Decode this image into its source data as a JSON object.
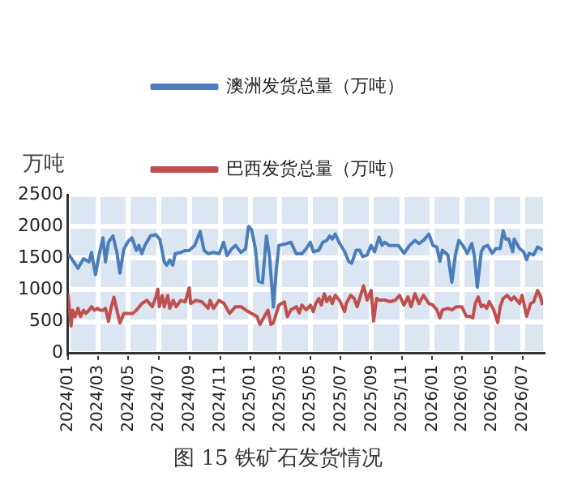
{
  "chart_data": {
    "type": "line",
    "title": "图 15 铁矿石发货情况",
    "ylabel": "万吨",
    "legend": "top",
    "grid": true,
    "marker": "none",
    "line_style": "solid",
    "xlim": [
      "2024-01-01",
      "2026-08-11"
    ],
    "xticks": [
      {
        "value": "2024-01",
        "label": "2024/01"
      },
      {
        "value": "2024-03",
        "label": "2024/03"
      },
      {
        "value": "2024-05",
        "label": "2024/05"
      },
      {
        "value": "2024-07",
        "label": "2024/07"
      },
      {
        "value": "2024-09",
        "label": "2024/09"
      },
      {
        "value": "2024-11",
        "label": "2024/11"
      },
      {
        "value": "2025-01",
        "label": "2025/01"
      },
      {
        "value": "2025-03",
        "label": "2025/03"
      },
      {
        "value": "2025-05",
        "label": "2025/05"
      },
      {
        "value": "2025-07",
        "label": "2025/07"
      },
      {
        "value": "2025-09",
        "label": "2025/09"
      },
      {
        "value": "2025-11",
        "label": "2025/11"
      },
      {
        "value": "2026-01",
        "label": "2026/01"
      },
      {
        "value": "2026-03",
        "label": "2026/03"
      },
      {
        "value": "2026-05",
        "label": "2026/05"
      },
      {
        "value": "2026-07",
        "label": "2026/07"
      }
    ],
    "ylim": [
      0,
      2500
    ],
    "yticks": [
      0,
      500,
      1000,
      1500,
      2000,
      2500
    ],
    "series": [
      {
        "name": "澳洲发货总量（万吨）",
        "color": "#4a7ebb",
        "x": [
          "2024-01-01",
          "2024-01-10",
          "2024-01-21",
          "2024-02-01",
          "2024-02-12",
          "2024-02-17",
          "2024-02-25",
          "2024-03-03",
          "2024-03-11",
          "2024-03-16",
          "2024-03-22",
          "2024-03-31",
          "2024-04-08",
          "2024-04-14",
          "2024-04-22",
          "2024-05-01",
          "2024-05-08",
          "2024-05-17",
          "2024-05-22",
          "2024-05-28",
          "2024-06-03",
          "2024-06-14",
          "2024-06-25",
          "2024-07-03",
          "2024-07-12",
          "2024-07-17",
          "2024-07-23",
          "2024-07-29",
          "2024-08-03",
          "2024-08-14",
          "2024-08-23",
          "2024-08-31",
          "2024-09-11",
          "2024-09-22",
          "2024-09-30",
          "2024-10-08",
          "2024-10-19",
          "2024-10-30",
          "2024-11-08",
          "2024-11-15",
          "2024-11-24",
          "2024-12-02",
          "2024-12-13",
          "2024-12-22",
          "2024-12-28",
          "2025-01-03",
          "2025-01-11",
          "2025-01-17",
          "2025-01-25",
          "2025-02-02",
          "2025-02-08",
          "2025-02-16",
          "2025-02-22",
          "2025-02-27",
          "2025-03-10",
          "2025-03-23",
          "2025-03-29",
          "2025-04-03",
          "2025-04-14",
          "2025-04-23",
          "2025-05-01",
          "2025-05-07",
          "2025-05-18",
          "2025-05-26",
          "2025-06-03",
          "2025-06-09",
          "2025-06-14",
          "2025-06-20",
          "2025-06-29",
          "2025-07-09",
          "2025-07-17",
          "2025-07-23",
          "2025-08-01",
          "2025-08-08",
          "2025-08-14",
          "2025-08-23",
          "2025-08-31",
          "2025-09-07",
          "2025-09-16",
          "2025-09-22",
          "2025-09-27",
          "2025-10-06",
          "2025-10-14",
          "2025-10-25",
          "2025-11-05",
          "2025-11-16",
          "2025-11-27",
          "2025-12-05",
          "2025-12-14",
          "2025-12-25",
          "2026-01-02",
          "2026-01-10",
          "2026-01-16",
          "2026-01-21",
          "2026-02-01",
          "2026-02-09",
          "2026-02-16",
          "2026-02-23",
          "2026-03-03",
          "2026-03-12",
          "2026-03-21",
          "2026-03-26",
          "2026-04-01",
          "2026-04-09",
          "2026-04-14",
          "2026-04-22",
          "2026-05-01",
          "2026-05-08",
          "2026-05-17",
          "2026-05-23",
          "2026-05-28",
          "2026-06-03",
          "2026-06-11",
          "2026-06-14",
          "2026-06-25",
          "2026-07-03",
          "2026-07-09",
          "2026-07-14",
          "2026-07-23",
          "2026-07-31",
          "2026-08-06",
          "2026-08-10"
        ],
        "values": [
          1570,
          1470,
          1340,
          1490,
          1440,
          1590,
          1240,
          1540,
          1820,
          1440,
          1750,
          1850,
          1590,
          1265,
          1645,
          1770,
          1820,
          1620,
          1700,
          1570,
          1700,
          1850,
          1870,
          1800,
          1440,
          1390,
          1470,
          1390,
          1570,
          1590,
          1620,
          1620,
          1700,
          1920,
          1620,
          1570,
          1590,
          1570,
          1750,
          1540,
          1645,
          1700,
          1590,
          1645,
          2000,
          1950,
          1645,
          1140,
          1110,
          1850,
          1540,
          730,
          1340,
          1700,
          1720,
          1750,
          1650,
          1570,
          1570,
          1650,
          1750,
          1600,
          1625,
          1750,
          1780,
          1850,
          1800,
          1880,
          1730,
          1600,
          1450,
          1420,
          1625,
          1625,
          1525,
          1550,
          1700,
          1600,
          1830,
          1700,
          1750,
          1700,
          1700,
          1700,
          1575,
          1700,
          1780,
          1730,
          1780,
          1880,
          1700,
          1675,
          1450,
          1625,
          1550,
          1120,
          1550,
          1780,
          1700,
          1575,
          1730,
          1550,
          1040,
          1600,
          1675,
          1700,
          1575,
          1650,
          1650,
          1930,
          1800,
          1800,
          1600,
          1800,
          1650,
          1600,
          1475,
          1575,
          1550,
          1675,
          1650,
          1625
        ]
      },
      {
        "name": "巴西发货总量（万吨）",
        "color": "#c0504d",
        "x": [
          "2024-01-01",
          "2024-01-07",
          "2024-01-10",
          "2024-01-15",
          "2024-01-21",
          "2024-01-26",
          "2024-02-01",
          "2024-02-06",
          "2024-02-12",
          "2024-02-17",
          "2024-02-23",
          "2024-02-29",
          "2024-03-05",
          "2024-03-11",
          "2024-03-16",
          "2024-03-22",
          "2024-03-27",
          "2024-04-02",
          "2024-04-08",
          "2024-04-14",
          "2024-04-22",
          "2024-05-01",
          "2024-05-10",
          "2024-05-17",
          "2024-05-28",
          "2024-06-07",
          "2024-06-18",
          "2024-06-25",
          "2024-06-29",
          "2024-07-02",
          "2024-07-08",
          "2024-07-12",
          "2024-07-19",
          "2024-07-23",
          "2024-07-30",
          "2024-08-05",
          "2024-08-14",
          "2024-08-23",
          "2024-08-31",
          "2024-09-03",
          "2024-09-14",
          "2024-09-26",
          "2024-10-08",
          "2024-10-12",
          "2024-10-19",
          "2024-10-30",
          "2024-11-09",
          "2024-11-20",
          "2024-12-02",
          "2024-12-13",
          "2024-12-23",
          "2025-01-03",
          "2025-01-14",
          "2025-01-20",
          "2025-01-25",
          "2025-02-05",
          "2025-02-11",
          "2025-02-16",
          "2025-02-27",
          "2025-03-10",
          "2025-03-16",
          "2025-03-23",
          "2025-04-03",
          "2025-04-09",
          "2025-04-14",
          "2025-04-23",
          "2025-05-01",
          "2025-05-07",
          "2025-05-12",
          "2025-05-18",
          "2025-05-23",
          "2025-05-29",
          "2025-06-03",
          "2025-06-09",
          "2025-06-14",
          "2025-06-20",
          "2025-06-29",
          "2025-07-09",
          "2025-07-12",
          "2025-07-21",
          "2025-07-28",
          "2025-08-03",
          "2025-08-12",
          "2025-08-16",
          "2025-08-23",
          "2025-08-31",
          "2025-09-05",
          "2025-09-11",
          "2025-09-16",
          "2025-09-27",
          "2025-10-08",
          "2025-10-19",
          "2025-10-27",
          "2025-11-05",
          "2025-11-13",
          "2025-11-19",
          "2025-11-27",
          "2025-12-05",
          "2025-12-14",
          "2025-12-25",
          "2026-01-02",
          "2026-01-10",
          "2026-01-16",
          "2026-01-21",
          "2026-02-01",
          "2026-02-09",
          "2026-02-18",
          "2026-03-01",
          "2026-03-10",
          "2026-03-17",
          "2026-03-23",
          "2026-03-28",
          "2026-04-03",
          "2026-04-09",
          "2026-04-14",
          "2026-04-20",
          "2026-04-25",
          "2026-05-04",
          "2026-05-12",
          "2026-05-17",
          "2026-05-23",
          "2026-05-31",
          "2026-06-08",
          "2026-06-14",
          "2026-06-19",
          "2026-06-25",
          "2026-06-30",
          "2026-07-09",
          "2026-07-17",
          "2026-07-23",
          "2026-07-31",
          "2026-08-06",
          "2026-08-10"
        ],
        "values": [
          935,
          430,
          680,
          580,
          710,
          580,
          680,
          630,
          680,
          735,
          680,
          710,
          680,
          680,
          710,
          505,
          710,
          885,
          680,
          480,
          630,
          630,
          630,
          680,
          785,
          835,
          735,
          885,
          1010,
          735,
          910,
          735,
          910,
          710,
          835,
          735,
          835,
          810,
          1035,
          785,
          835,
          810,
          710,
          835,
          710,
          835,
          785,
          630,
          735,
          735,
          680,
          630,
          580,
          455,
          530,
          680,
          455,
          480,
          760,
          810,
          580,
          685,
          735,
          635,
          760,
          685,
          760,
          660,
          785,
          865,
          760,
          940,
          815,
          890,
          785,
          915,
          830,
          660,
          785,
          915,
          865,
          735,
          965,
          1065,
          840,
          990,
          510,
          865,
          840,
          840,
          815,
          840,
          915,
          760,
          890,
          735,
          940,
          785,
          915,
          785,
          760,
          685,
          560,
          685,
          710,
          685,
          735,
          735,
          585,
          585,
          560,
          785,
          890,
          735,
          760,
          710,
          815,
          685,
          485,
          735,
          865,
          915,
          840,
          890,
          840,
          785,
          915,
          585,
          785,
          810,
          990,
          890,
          760
        ]
      }
    ]
  }
}
